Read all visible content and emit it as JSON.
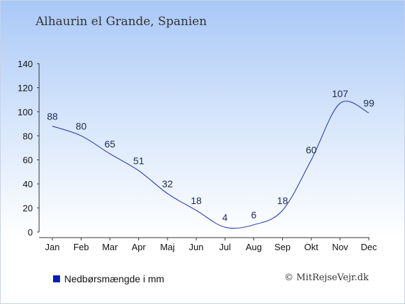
{
  "chart_data": {
    "type": "line",
    "title": "Alhaurin el Grande, Spanien",
    "categories": [
      "Jan",
      "Feb",
      "Mar",
      "Apr",
      "Maj",
      "Jun",
      "Jul",
      "Aug",
      "Sep",
      "Okt",
      "Nov",
      "Dec"
    ],
    "series": [
      {
        "name": "Nedbørsmængde i mm",
        "values": [
          88,
          80,
          65,
          51,
          32,
          18,
          4,
          6,
          18,
          60,
          107,
          99
        ]
      }
    ],
    "ylim": [
      0,
      140
    ],
    "yticks": [
      0,
      20,
      40,
      60,
      80,
      100,
      120,
      140
    ],
    "xlabel": "",
    "ylabel": "",
    "grid": false,
    "legend_position": "bottom-left",
    "colors": {
      "line": "#1a2fa8",
      "swatch": "#0a1fb0"
    }
  },
  "copyright": "© MitRejseVejr.dk"
}
